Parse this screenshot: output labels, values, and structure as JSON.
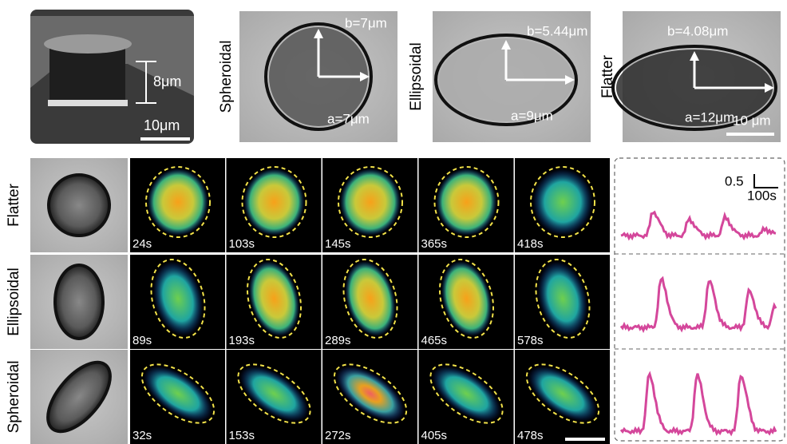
{
  "top": {
    "sem": {
      "height": "8μm",
      "scale": "10μm"
    },
    "panels": [
      {
        "label": "Spheroidal",
        "b": "b=7μm",
        "a": "a=7μm"
      },
      {
        "label": "Ellipsoidal",
        "b": "b=5.44μm",
        "a": "a=9μm"
      },
      {
        "label": "Flatter",
        "b": "b=4.08μm",
        "a": "a=12μm",
        "scale": "10 μm"
      }
    ]
  },
  "rows": [
    {
      "label": "Flatter",
      "times": [
        "24s",
        "103s",
        "145s",
        "365s",
        "418s"
      ]
    },
    {
      "label": "Ellipsoidal",
      "times": [
        "89s",
        "193s",
        "289s",
        "465s",
        "578s"
      ]
    },
    {
      "label": "Spheroidal",
      "times": [
        "32s",
        "153s",
        "272s",
        "405s",
        "478s"
      ]
    }
  ],
  "scale_bar": {
    "y": "0.5",
    "x": "100s"
  }
}
